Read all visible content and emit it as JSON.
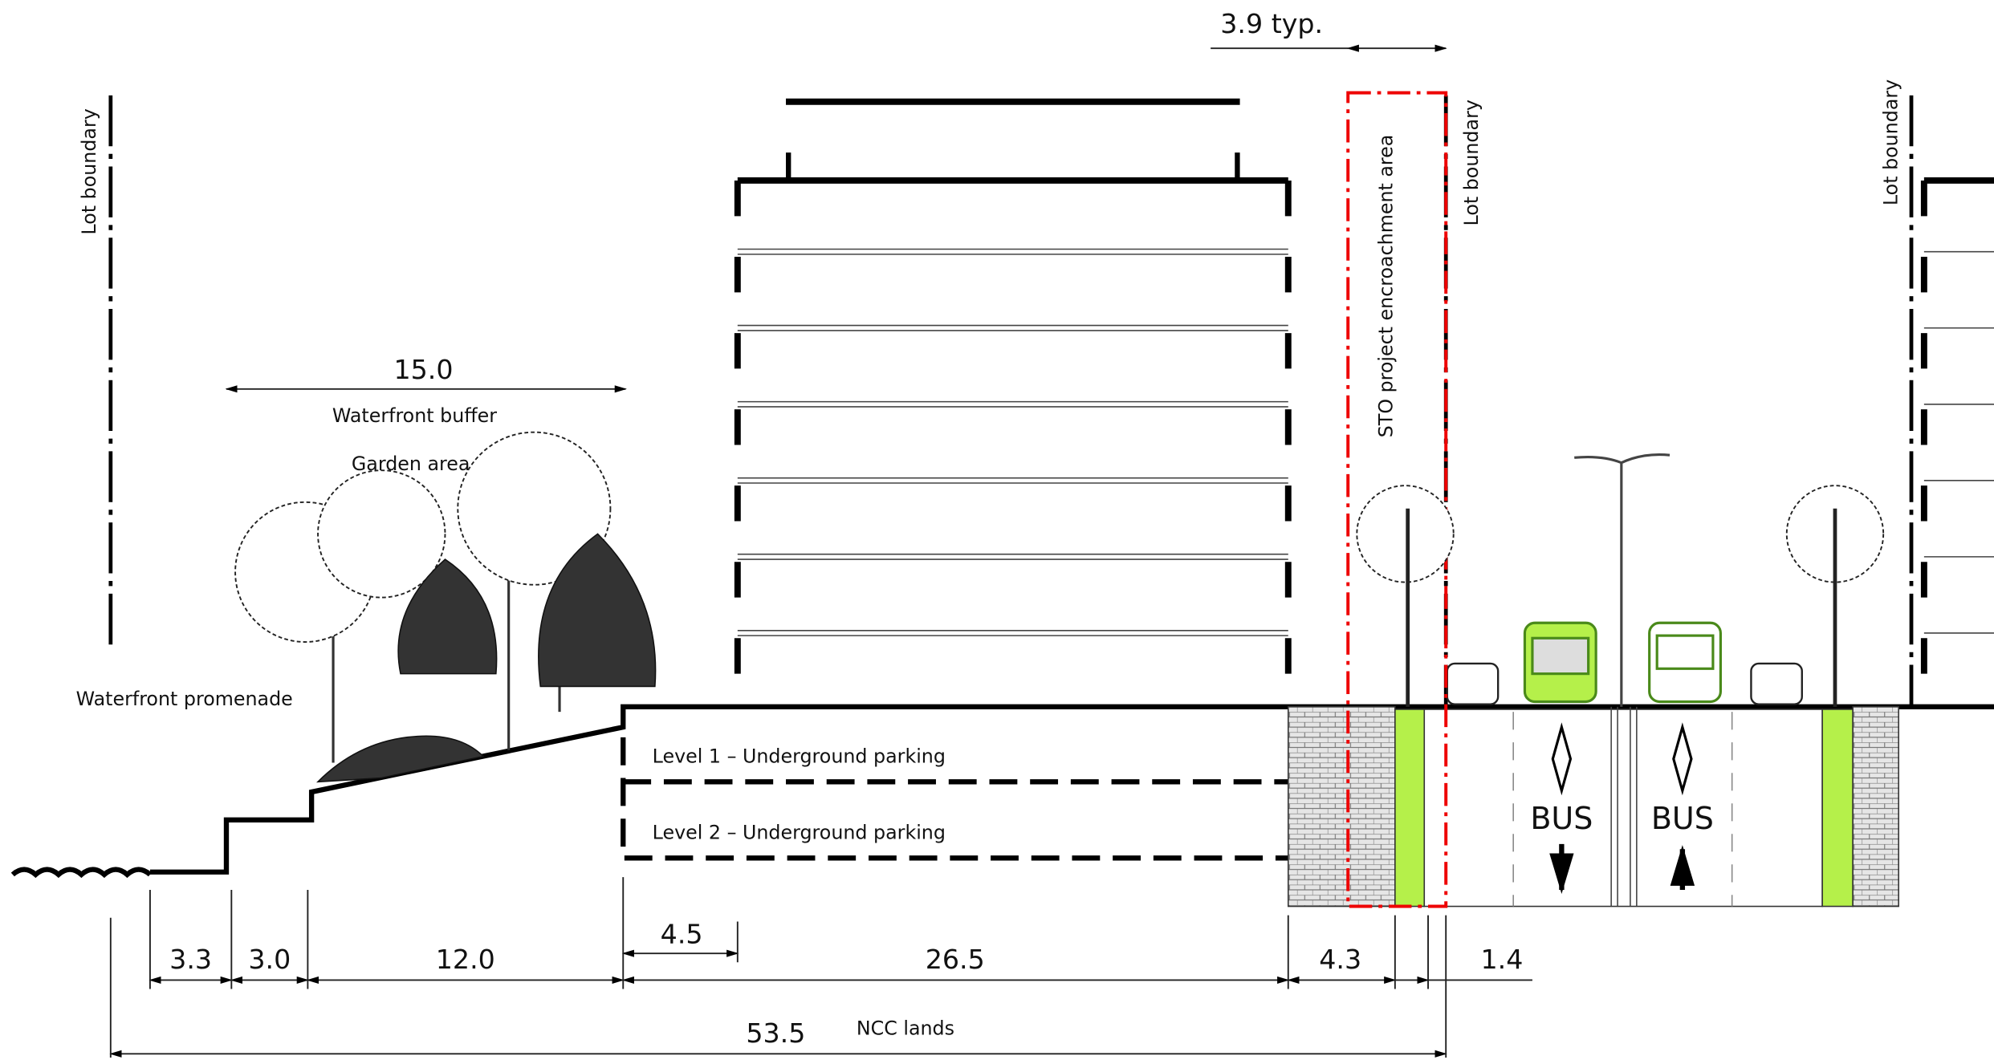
{
  "annotations": {
    "typical_width": "3.9 typ.",
    "lot_boundary_left": "Lot boundary",
    "lot_boundary_middle": "Lot boundary",
    "lot_boundary_right": "Lot boundary",
    "encroachment_area": "STO project encroachment area",
    "buffer_width": "15.0",
    "waterfront_buffer": "Waterfront buffer",
    "garden_area": "Garden area",
    "waterfront_promenade": "Waterfront promenade",
    "total_width": "53.5",
    "ncc_lands": "NCC lands"
  },
  "parking_levels": [
    "Level 1 – Underground parking",
    "Level 2 – Underground parking"
  ],
  "bus_lanes": [
    "BUS",
    "BUS"
  ],
  "dimensions": [
    "3.3",
    "3.0",
    "12.0",
    "4.5",
    "26.5",
    "4.3",
    "1.4"
  ]
}
